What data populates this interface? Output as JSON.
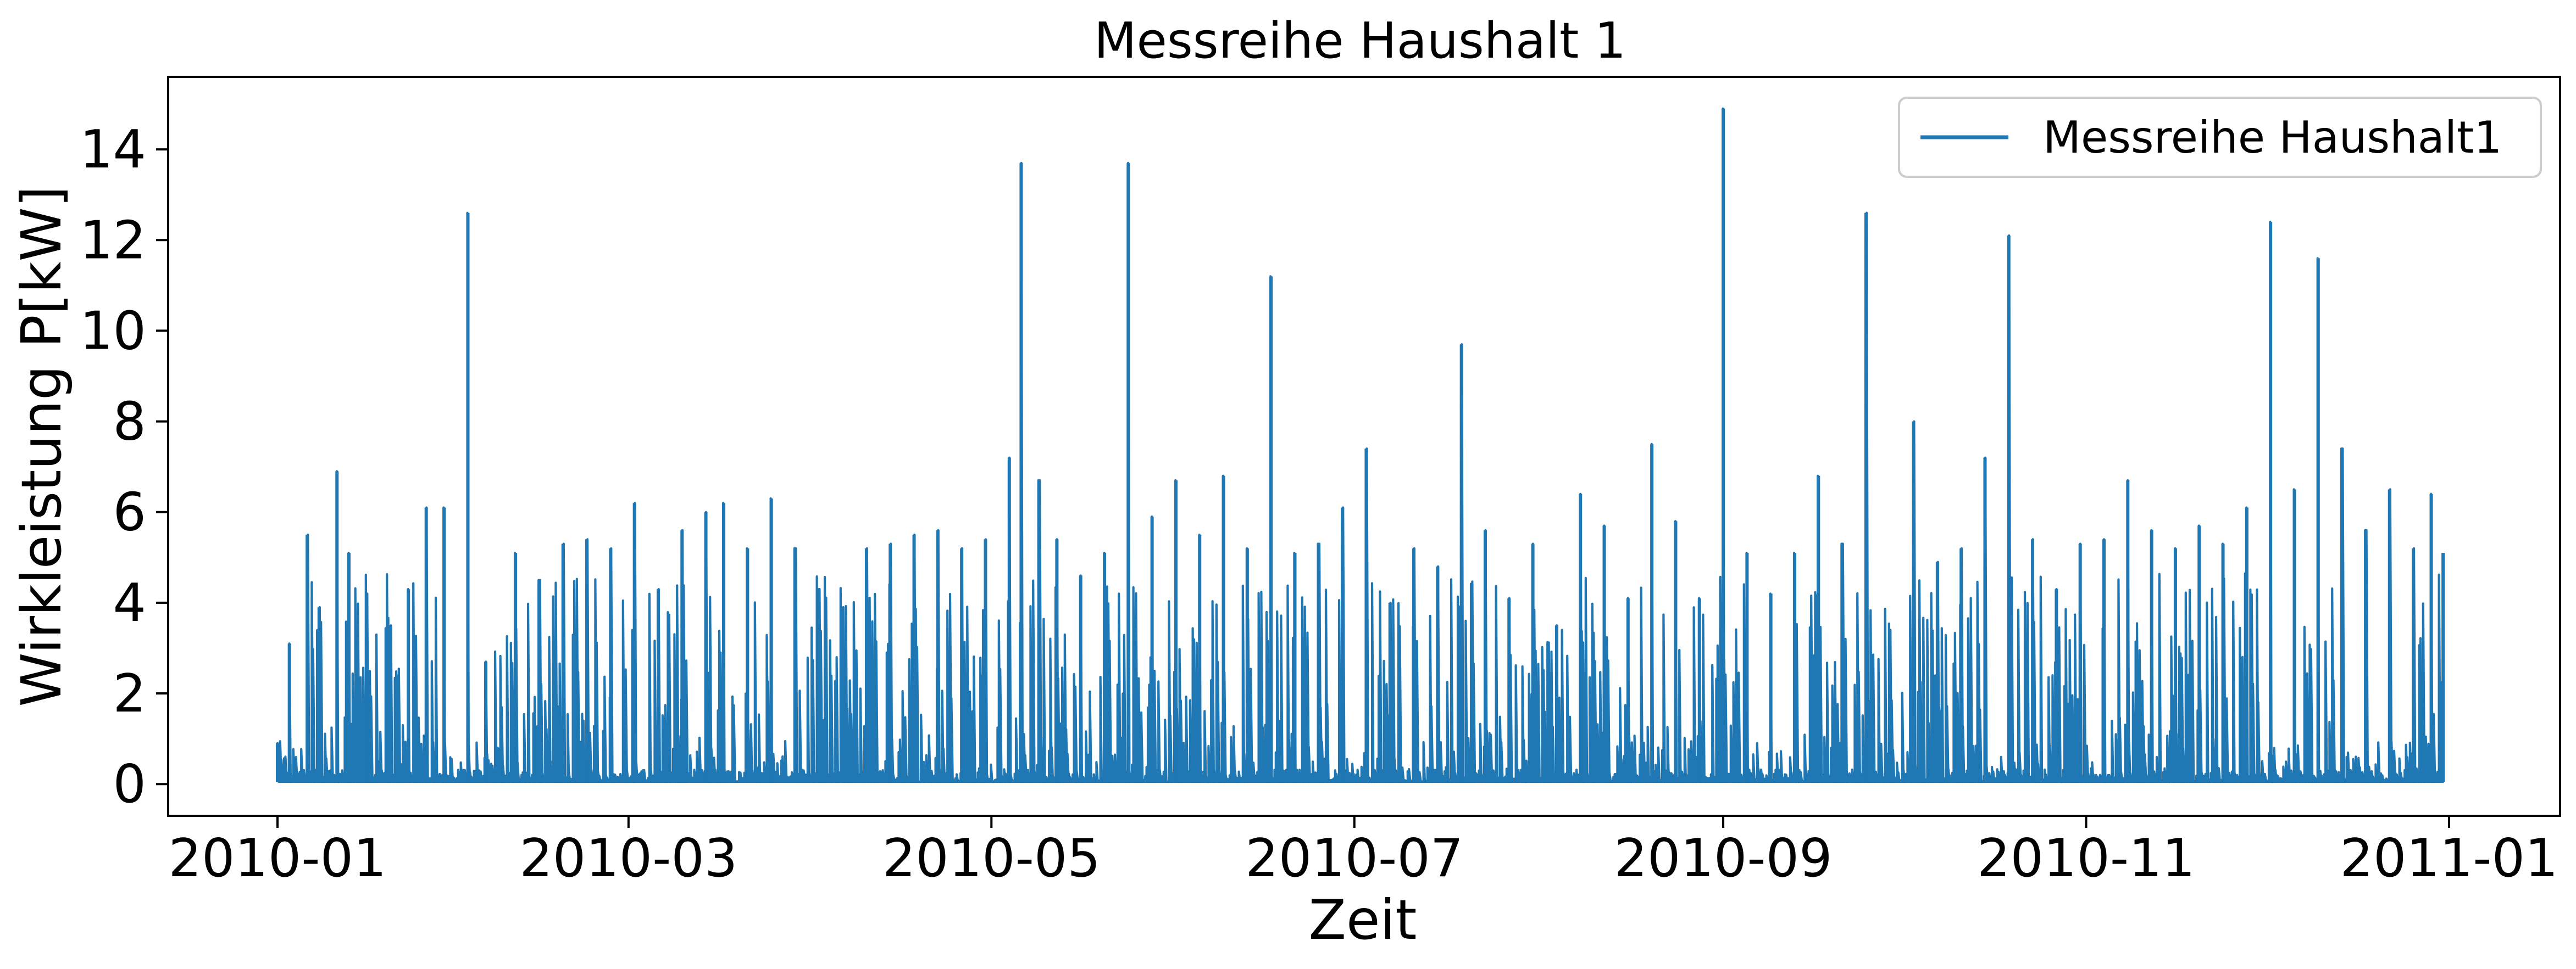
{
  "chart_data": {
    "type": "line",
    "title": "Messreihe Haushalt 1",
    "xlabel": "Zeit",
    "ylabel": "Wirkleistung P[kW]",
    "xlim": [
      "2010-01-01",
      "2011-01-01"
    ],
    "ylim": [
      -0.7,
      15.6
    ],
    "x_ticks": [
      "2010-01",
      "2010-03",
      "2010-05",
      "2010-07",
      "2010-09",
      "2010-11",
      "2011-01"
    ],
    "y_ticks": [
      0,
      2,
      4,
      6,
      8,
      10,
      12,
      14
    ],
    "grid": false,
    "legend_position": "top-right",
    "colors": {
      "series": "#1f77b4"
    },
    "series": [
      {
        "name": "Messreihe Haushalt1",
        "x": [
          "2010-01-01",
          "2010-01-03",
          "2010-01-06",
          "2010-01-08",
          "2010-01-11",
          "2010-01-13",
          "2010-01-16",
          "2010-01-20",
          "2010-01-23",
          "2010-01-26",
          "2010-01-29",
          "2010-02-02",
          "2010-02-05",
          "2010-02-07",
          "2010-02-10",
          "2010-02-14",
          "2010-02-18",
          "2010-02-22",
          "2010-02-26",
          "2010-03-02",
          "2010-03-06",
          "2010-03-10",
          "2010-03-14",
          "2010-03-17",
          "2010-03-21",
          "2010-03-25",
          "2010-03-29",
          "2010-04-02",
          "2010-04-06",
          "2010-04-10",
          "2010-04-14",
          "2010-04-18",
          "2010-04-22",
          "2010-04-26",
          "2010-04-30",
          "2010-05-04",
          "2010-05-06",
          "2010-05-09",
          "2010-05-12",
          "2010-05-16",
          "2010-05-20",
          "2010-05-24",
          "2010-05-28",
          "2010-06-01",
          "2010-06-05",
          "2010-06-09",
          "2010-06-13",
          "2010-06-17",
          "2010-06-21",
          "2010-06-25",
          "2010-06-29",
          "2010-07-03",
          "2010-07-07",
          "2010-07-11",
          "2010-07-15",
          "2010-07-19",
          "2010-07-23",
          "2010-07-27",
          "2010-07-31",
          "2010-08-04",
          "2010-08-08",
          "2010-08-12",
          "2010-08-16",
          "2010-08-20",
          "2010-08-24",
          "2010-08-28",
          "2010-09-01",
          "2010-09-05",
          "2010-09-09",
          "2010-09-13",
          "2010-09-17",
          "2010-09-21",
          "2010-09-25",
          "2010-09-29",
          "2010-10-03",
          "2010-10-07",
          "2010-10-11",
          "2010-10-15",
          "2010-10-19",
          "2010-10-23",
          "2010-10-27",
          "2010-10-31",
          "2010-11-04",
          "2010-11-08",
          "2010-11-12",
          "2010-11-16",
          "2010-11-20",
          "2010-11-24",
          "2010-11-28",
          "2010-12-02",
          "2010-12-06",
          "2010-12-10",
          "2010-12-14",
          "2010-12-18",
          "2010-12-22",
          "2010-12-26",
          "2010-12-29",
          "2010-12-31"
        ],
        "y": [
          0.9,
          3.1,
          5.5,
          3.9,
          6.9,
          5.1,
          4.2,
          3.5,
          4.3,
          6.1,
          6.1,
          12.6,
          2.7,
          0.8,
          5.1,
          4.5,
          5.3,
          5.4,
          5.2,
          6.2,
          4.3,
          5.6,
          6.0,
          6.2,
          5.2,
          6.3,
          5.2,
          4.3,
          3.9,
          5.2,
          5.3,
          5.5,
          5.6,
          5.2,
          5.4,
          7.2,
          13.7,
          6.7,
          5.4,
          4.6,
          5.1,
          13.7,
          5.9,
          6.7,
          5.5,
          6.8,
          5.2,
          11.2,
          5.1,
          5.3,
          6.1,
          7.4,
          4.0,
          5.2,
          4.8,
          9.7,
          5.6,
          4.1,
          5.3,
          3.5,
          6.4,
          5.7,
          4.1,
          7.5,
          5.8,
          4.1,
          14.9,
          5.1,
          4.2,
          5.1,
          6.8,
          5.3,
          12.6,
          3.4,
          8.0,
          4.9,
          5.2,
          7.2,
          12.1,
          5.4,
          4.3,
          5.3,
          5.4,
          6.7,
          5.6,
          5.2,
          5.7,
          5.3,
          6.1,
          12.4,
          6.5,
          11.6,
          7.4,
          5.6,
          6.5,
          5.2,
          6.4,
          5.1
        ]
      }
    ]
  }
}
